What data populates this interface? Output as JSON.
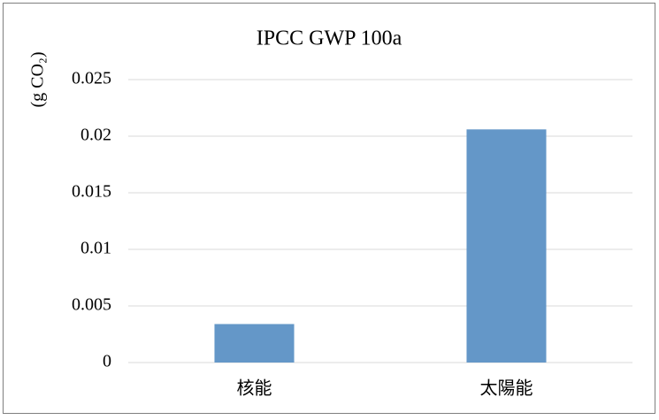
{
  "chart_data": {
    "type": "bar",
    "title": "IPCC GWP 100a",
    "y_label": "(g CO₂)",
    "categories": [
      "核能",
      "太陽能"
    ],
    "values": [
      0.0034,
      0.0206
    ],
    "color": "#6497c8",
    "ylim": [
      0,
      0.025
    ],
    "yticks": [
      0,
      0.005,
      0.01,
      0.015,
      0.02,
      0.025
    ],
    "grid": true
  }
}
